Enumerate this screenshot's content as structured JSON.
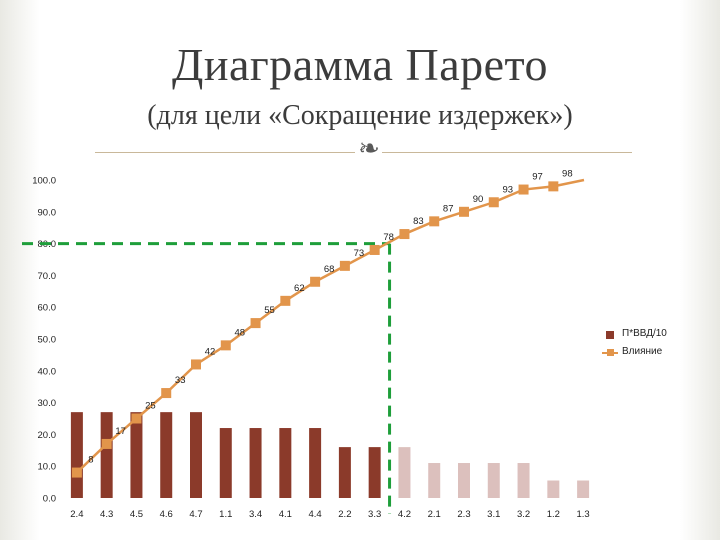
{
  "header": {
    "title": "Диаграмма Парето",
    "subtitle": "(для цели «Сокращение издержек»)"
  },
  "colors": {
    "bar_primary": "#8b3a2a",
    "bar_faded": "#dcc0bd",
    "line": "#e2954b",
    "cutoff": "#1e9e3a"
  },
  "chart_data": {
    "type": "bar+line",
    "categories": [
      "2.4",
      "4.3",
      "4.5",
      "4.6",
      "4.7",
      "1.1",
      "3.4",
      "4.1",
      "4.4",
      "2.2",
      "3.3",
      "4.2",
      "2.1",
      "2.3",
      "3.1",
      "3.2",
      "1.2",
      "1.3"
    ],
    "ylim": [
      0,
      100
    ],
    "y_ticks": [
      "0.0",
      "10.0",
      "20.0",
      "30.0",
      "40.0",
      "50.0",
      "60.0",
      "70.0",
      "80.0",
      "90.0",
      "100.0"
    ],
    "series": [
      {
        "name": "П*ВВД/10",
        "kind": "bar",
        "values": [
          27,
          27,
          27,
          27,
          27,
          22,
          22,
          22,
          22,
          16,
          16,
          16,
          11,
          11,
          11,
          11,
          5.5,
          5.5
        ],
        "faded_from_index": 11
      },
      {
        "name": "Влияние",
        "kind": "line",
        "values": [
          8,
          17,
          25,
          33,
          42,
          48,
          55,
          62,
          68,
          73,
          78,
          83,
          87,
          90,
          93,
          97,
          98,
          100
        ],
        "labels": [
          "8",
          "17",
          "25",
          "33",
          "42",
          "48",
          "55",
          "62",
          "68",
          "73",
          "78",
          "83",
          "87",
          "90",
          "93",
          "97",
          "98",
          ""
        ]
      }
    ],
    "cutoff": {
      "y": 80,
      "after_category": "3.3"
    },
    "legend_position": "right",
    "grid": false
  }
}
